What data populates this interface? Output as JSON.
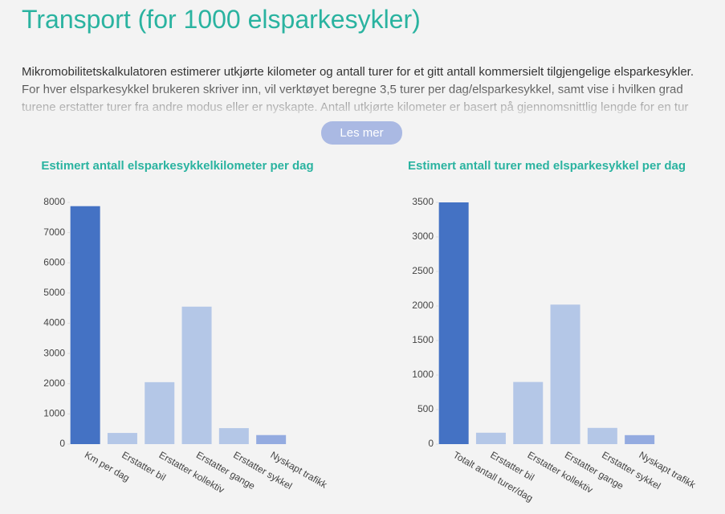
{
  "header": {
    "title": "Transport (for 1000 elsparkesykler)"
  },
  "intro": {
    "text": "Mikromobilitetskalkulatoren estimerer utkjørte kilometer og antall turer for et gitt antall kommersielt tilgjengelige elsparkesykler. For hver elsparkesykkel brukeren skriver inn, vil verktøyet beregne 3,5 turer per dag/elsparkesykkel, samt vise i hvilken grad turene erstatter turer fra andre modus eller er nyskapte. Antall utkjørte kilometer er basert på gjennomsnittlig lengde for en tur",
    "button": "Les mer"
  },
  "chart_data": [
    {
      "type": "bar",
      "title": "Estimert antall elsparkesykkelkilometer per dag",
      "categories": [
        "Km per dag",
        "Erstatter bil",
        "Erstatter kollektiv",
        "Erstatter gange",
        "Erstatter sykkel",
        "Nyskapt trafikk"
      ],
      "values": [
        7875,
        370,
        2050,
        4550,
        530,
        300
      ],
      "colors": [
        "#4472c4",
        "#b4c7e7",
        "#b4c7e7",
        "#b4c7e7",
        "#b4c7e7",
        "#94abe0"
      ],
      "ylim": [
        0,
        8000
      ],
      "yticks": [
        0,
        1000,
        2000,
        3000,
        4000,
        5000,
        6000,
        7000,
        8000
      ]
    },
    {
      "type": "bar",
      "title": "Estimert antall turer med elsparkesykkel per dag",
      "categories": [
        "Totalt antall turer/dag",
        "Erstatter bil",
        "Erstatter kollektiv",
        "Erstatter gange",
        "Erstatter sykkel",
        "Nyskapt trafikk"
      ],
      "values": [
        3500,
        165,
        900,
        2020,
        235,
        130
      ],
      "colors": [
        "#4472c4",
        "#b4c7e7",
        "#b4c7e7",
        "#b4c7e7",
        "#b4c7e7",
        "#94abe0"
      ],
      "ylim": [
        0,
        3500
      ],
      "yticks": [
        0,
        500,
        1000,
        1500,
        2000,
        2500,
        3000,
        3500
      ]
    }
  ]
}
